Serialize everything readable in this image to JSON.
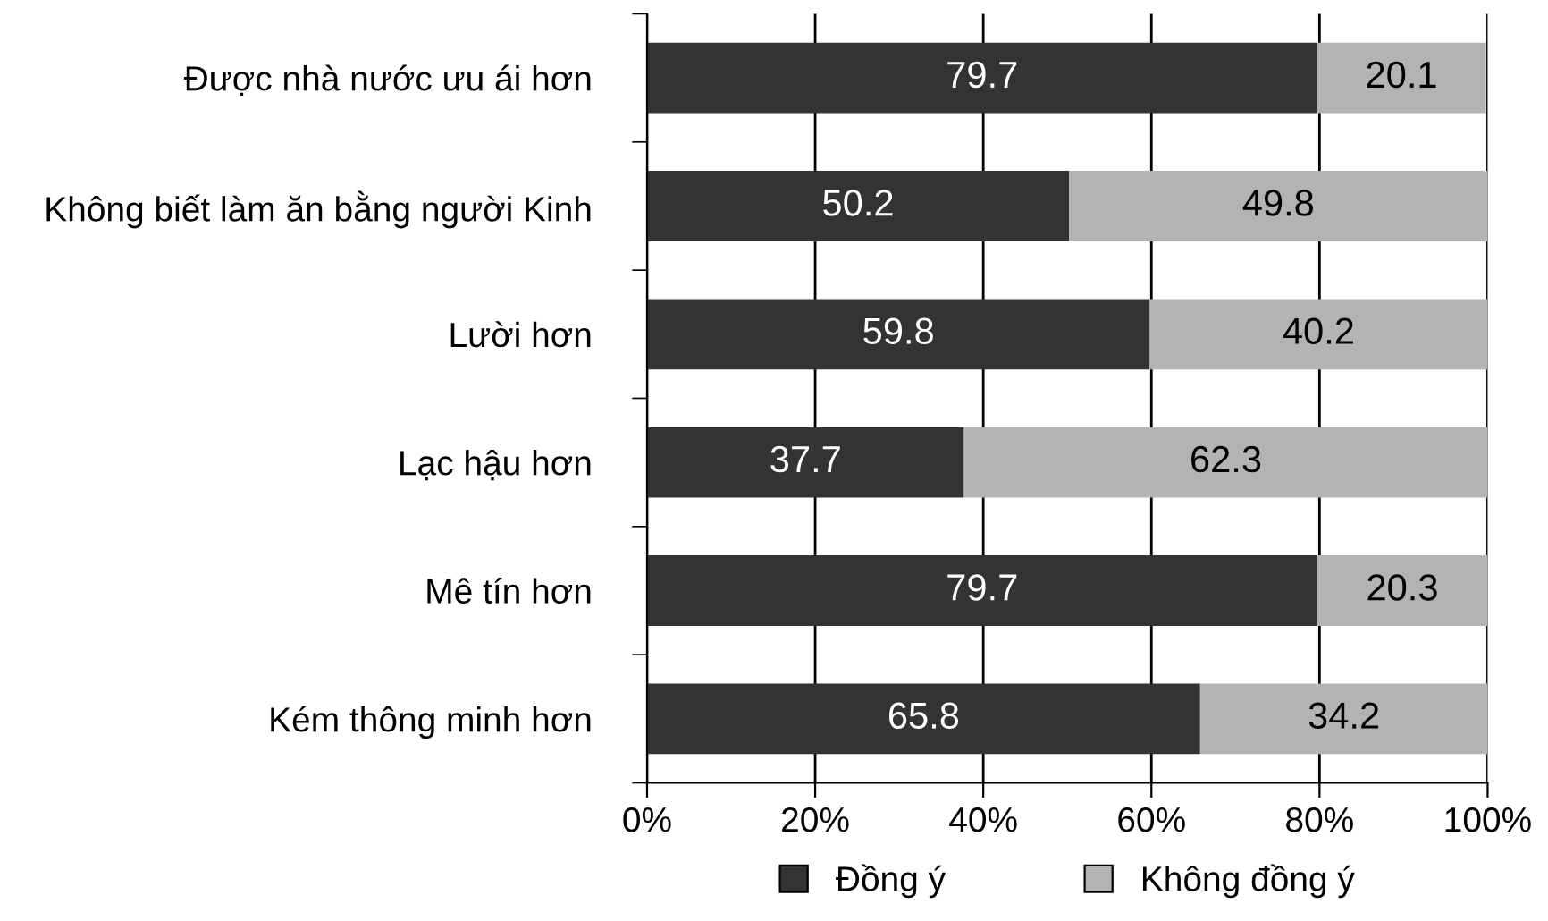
{
  "chart_data": {
    "type": "bar",
    "orientation": "horizontal",
    "stacked": true,
    "categories": [
      "Được nhà nước ưu ái hơn",
      "Không biết làm ăn bằng người Kinh",
      "Lười hơn",
      "Lạc hậu hơn",
      "Mê tín hơn",
      "Kém thông minh hơn"
    ],
    "series": [
      {
        "name": "Đồng ý",
        "color": "#333333",
        "values": [
          79.7,
          50.2,
          59.8,
          37.7,
          79.7,
          65.8
        ]
      },
      {
        "name": "Không đồng ý",
        "color": "#b3b3b3",
        "values": [
          20.1,
          49.8,
          40.2,
          62.3,
          20.3,
          34.2
        ]
      }
    ],
    "xlim": [
      0,
      100
    ],
    "xticks": [
      {
        "value": 0,
        "label": "0%"
      },
      {
        "value": 20,
        "label": "20%"
      },
      {
        "value": 40,
        "label": "40%"
      },
      {
        "value": 60,
        "label": "60%"
      },
      {
        "value": 80,
        "label": "80%"
      },
      {
        "value": 100,
        "label": "100%"
      }
    ],
    "grid": "x",
    "legend": "bottom",
    "data_labels": true
  }
}
